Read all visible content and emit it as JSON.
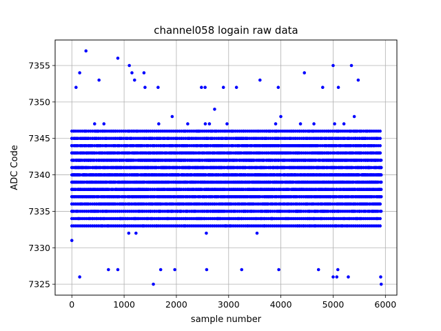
{
  "chart_data": {
    "type": "scatter",
    "title": "channel058 logain raw data",
    "xlabel": "sample number",
    "ylabel": "ADC Code",
    "xlim": [
      -320,
      6220
    ],
    "ylim": [
      7323.5,
      7358.5
    ],
    "x_ticks": [
      0,
      1000,
      2000,
      3000,
      4000,
      5000,
      6000
    ],
    "y_ticks": [
      7325,
      7330,
      7335,
      7340,
      7345,
      7350,
      7355
    ],
    "x_tick_labels": [
      "0",
      "1000",
      "2000",
      "3000",
      "4000",
      "5000",
      "6000"
    ],
    "y_tick_labels": [
      "7325",
      "7330",
      "7335",
      "7340",
      "7345",
      "7350",
      "7355"
    ],
    "grid": true,
    "marker_color": "#0000ff",
    "series": [
      {
        "marker": "circle",
        "x_range": [
          0,
          5919
        ],
        "core_y_range": [
          7333,
          7346
        ],
        "outlier_points": [
          [
            270,
            7357
          ],
          [
            880,
            7356
          ],
          [
            1100,
            7355
          ],
          [
            5000,
            7355
          ],
          [
            5350,
            7355
          ],
          [
            1150,
            7354
          ],
          [
            150,
            7354
          ],
          [
            1380,
            7354
          ],
          [
            4450,
            7354
          ],
          [
            520,
            7353
          ],
          [
            1200,
            7353
          ],
          [
            3600,
            7353
          ],
          [
            5480,
            7353
          ],
          [
            80,
            7352
          ],
          [
            2480,
            7352
          ],
          [
            2550,
            7352
          ],
          [
            2900,
            7352
          ],
          [
            3150,
            7352
          ],
          [
            3950,
            7352
          ],
          [
            4800,
            7352
          ],
          [
            5100,
            7352
          ],
          [
            1400,
            7352
          ],
          [
            1650,
            7352
          ],
          [
            150,
            7326
          ],
          [
            1560,
            7325
          ],
          [
            5920,
            7325
          ],
          [
            5000,
            7326
          ],
          [
            5070,
            7326
          ],
          [
            5290,
            7326
          ],
          [
            5910,
            7326
          ],
          [
            700,
            7327
          ],
          [
            880,
            7327
          ],
          [
            1700,
            7327
          ],
          [
            1970,
            7327
          ],
          [
            2580,
            7327
          ],
          [
            3250,
            7327
          ],
          [
            3960,
            7327
          ],
          [
            4720,
            7327
          ],
          [
            5090,
            7327
          ]
        ]
      }
    ]
  }
}
